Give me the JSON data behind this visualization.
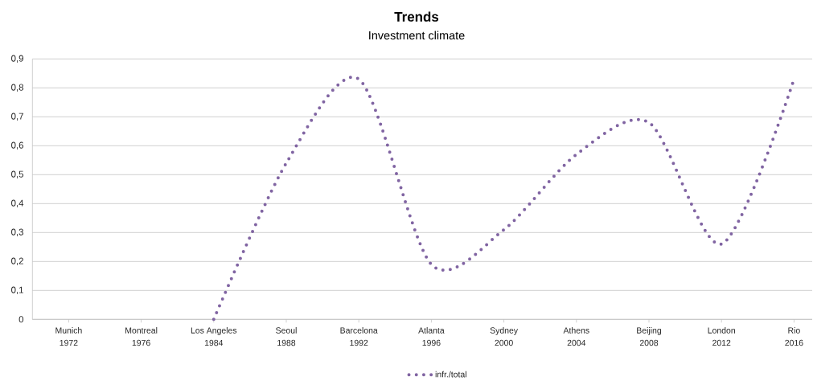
{
  "chart_data": {
    "type": "line",
    "title": "Trends",
    "subtitle": "Investment climate",
    "categories": [
      "Munich\n1972",
      "Montreal\n1976",
      "Los Angeles\n1984",
      "Seoul\n1988",
      "Barcelona\n1992",
      "Atlanta\n1996",
      "Sydney\n2000",
      "Athens\n2004",
      "Beijing\n2008",
      "London\n2012",
      "Rio\n2016"
    ],
    "series": [
      {
        "name": "infr./total",
        "color": "#8064a2",
        "values": [
          null,
          null,
          0,
          0.54,
          0.83,
          0.19,
          0.31,
          0.57,
          0.68,
          0.26,
          0.83
        ]
      }
    ],
    "ylim": [
      0,
      0.9
    ],
    "yticks": [
      0,
      {
        "value": 0.1,
        "label": "0,1"
      },
      {
        "value": 0.2,
        "label": "0,2"
      },
      {
        "value": 0.3,
        "label": "0,3"
      },
      {
        "value": 0.4,
        "label": "0,4"
      },
      {
        "value": 0.5,
        "label": "0,5"
      },
      {
        "value": 0.6,
        "label": "0,6"
      },
      {
        "value": 0.7,
        "label": "0,7"
      },
      {
        "value": 0.8,
        "label": "0,8"
      },
      {
        "value": 0.9,
        "label": "0,9"
      }
    ],
    "grid": "y",
    "legend": "bottom",
    "marker": "none",
    "line_style": "dotted"
  }
}
